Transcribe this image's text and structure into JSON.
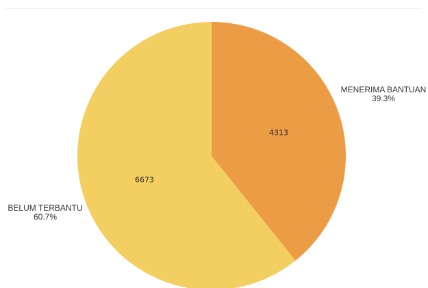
{
  "chart_data": {
    "type": "pie",
    "slices": [
      {
        "name": "MENERIMA BANTUAN",
        "value": 4313,
        "percent": "39.3%",
        "color": "#EB9C45"
      },
      {
        "name": "BELUM TERBANTU",
        "value": 6673,
        "percent": "60.7%",
        "color": "#F3CE61"
      }
    ],
    "start_angle_deg": 0,
    "direction": "clockwise",
    "legend": "none"
  }
}
